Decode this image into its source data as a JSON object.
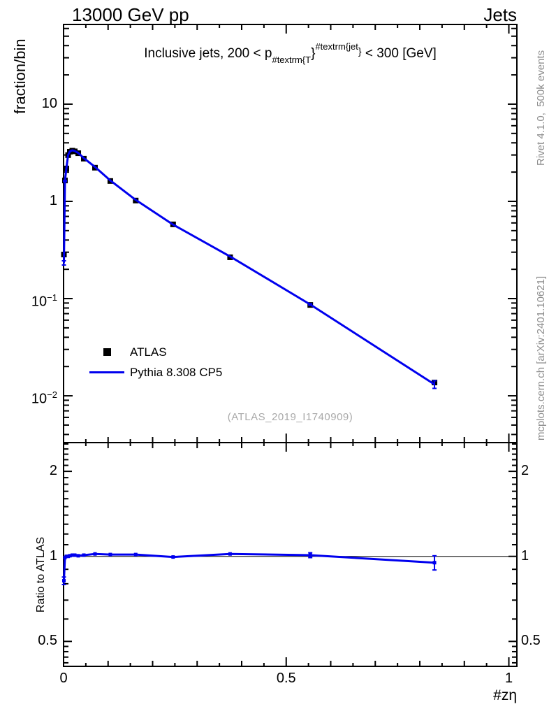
{
  "header": {
    "left": "13000 GeV pp",
    "right": "Jets"
  },
  "main_panel": {
    "ylabel": "fraction/bin",
    "title": {
      "prefix": "Inclusive jets, 200 < p",
      "sub": "#textrm{T",
      "brace1": "}",
      "sup": "#textrm{jet",
      "brace2": "}",
      "suffix": " < 300 [GeV]"
    },
    "legend": [
      {
        "label": "ATLAS",
        "marker": "black-square"
      },
      {
        "label": "Pythia 8.308 CP5",
        "marker": "blue-line"
      }
    ],
    "watermark": "(ATLAS_2019_I1740909)"
  },
  "ratio_panel": {
    "ylabel": "Ratio to ATLAS"
  },
  "xaxis": {
    "label": "#zη"
  },
  "credits": {
    "top": "Rivet 4.1.0,  500k events",
    "bottom": "mcplots.cern.ch [arXiv:2401.10621]"
  },
  "colors": {
    "model_blue": "#0000EE",
    "data_black": "#000000",
    "credit_gray": "#8e8e8e",
    "watermark_gray": "#a9a9a9"
  },
  "chart_data": {
    "type": "line",
    "title": "Inclusive jets, 200 < pT_jet < 300 [GeV]",
    "xlabel": "#zη",
    "ylabel": "fraction/bin",
    "ratio_ylabel": "Ratio to ATLAS",
    "legend_position": "left-middle",
    "grid": false,
    "axes": {
      "x_min": 0,
      "x_max": 1.018,
      "y_scale": "log",
      "y_min": 0.0033,
      "y_max": 66,
      "ratio_scale": "log",
      "ratio_min": 0.408,
      "ratio_max": 2.528,
      "x_tick_step_minor": 0.05,
      "x_tick_step_medium": 0.1,
      "x_tick_step_major": 0.5,
      "y_tick_labels": [
        {
          "v": 10,
          "base": "10",
          "exp": ""
        },
        {
          "v": 1,
          "base": "1",
          "exp": ""
        },
        {
          "v": 0.1,
          "base": "10",
          "exp": "−1"
        },
        {
          "v": 0.01,
          "base": "10",
          "exp": "−2"
        }
      ],
      "ratio_tick_labels": [
        {
          "v": 2,
          "label": "2"
        },
        {
          "v": 1,
          "label": "1"
        },
        {
          "v": 0.5,
          "label": "0.5"
        }
      ],
      "ratio_minor_ticks": [
        0.42,
        0.44,
        0.46,
        0.48,
        0.6,
        0.7,
        0.8,
        0.9,
        1.1,
        1.2,
        1.3,
        1.4,
        1.5,
        1.6,
        1.7,
        1.8,
        1.9,
        2.1,
        2.2,
        2.3,
        2.4,
        2.5
      ],
      "x_tick_labels": [
        {
          "v": 0,
          "label": "0"
        },
        {
          "v": 0.5,
          "label": "0.5"
        },
        {
          "v": 1,
          "label": "1"
        }
      ]
    },
    "x": [
      0.0008,
      0.0031,
      0.0063,
      0.0102,
      0.0141,
      0.0196,
      0.0251,
      0.033,
      0.0455,
      0.0706,
      0.105,
      0.162,
      0.246,
      0.374,
      0.554,
      0.833
    ],
    "series": [
      {
        "name": "ATLAS",
        "style": "black-squares",
        "y": [
          0.284,
          1.64,
          2.18,
          2.99,
          3.24,
          3.32,
          3.27,
          3.13,
          2.75,
          2.22,
          1.62,
          1.02,
          0.58,
          0.266,
          0.086,
          0.0137
        ]
      },
      {
        "name": "Pythia 8.308 CP5",
        "style": "blue-line",
        "y": [
          0.233,
          1.62,
          2.18,
          2.99,
          3.26,
          3.35,
          3.3,
          3.15,
          2.78,
          2.26,
          1.64,
          1.035,
          0.577,
          0.271,
          0.0869,
          0.0131
        ],
        "yerr_frac": [
          0.05,
          0.012,
          0.008,
          0.006,
          0.005,
          0.005,
          0.005,
          0.005,
          0.005,
          0.005,
          0.006,
          0.007,
          0.008,
          0.01,
          0.018,
          0.09
        ]
      }
    ],
    "ratio": {
      "name": "Pythia 8.308 CP5 / ATLAS",
      "y": [
        0.82,
        0.99,
        1.0,
        1.0,
        1.005,
        1.01,
        1.01,
        1.005,
        1.01,
        1.02,
        1.015,
        1.015,
        0.995,
        1.02,
        1.01,
        0.95
      ],
      "yerr": [
        0.025,
        0.012,
        0.008,
        0.006,
        0.006,
        0.006,
        0.006,
        0.006,
        0.006,
        0.008,
        0.008,
        0.01,
        0.01,
        0.012,
        0.02,
        0.055
      ],
      "reference_line": 1
    }
  }
}
